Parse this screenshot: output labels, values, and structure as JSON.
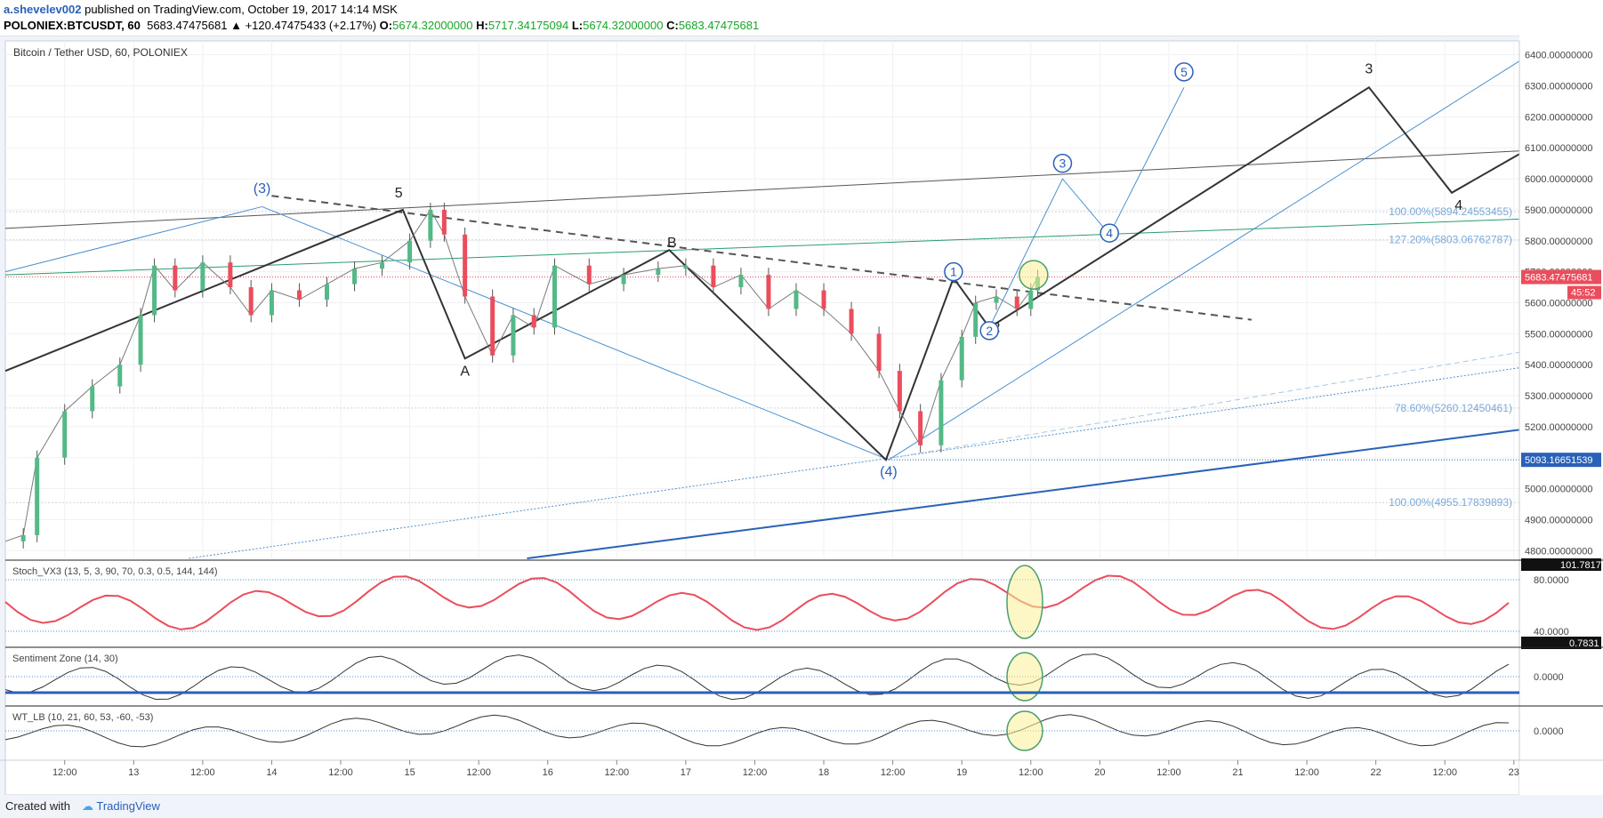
{
  "header": {
    "author": "a.shevelev002",
    "published": "published on TradingView.com, October 19, 2017 14:14 MSK",
    "symbol": "POLONIEX:BTCUSDT, 60",
    "last": "5683.47475681",
    "change": "▲ +120.47475433 (+2.17%)",
    "o_label": "O:",
    "o": "5674.32000000",
    "h_label": "H:",
    "h": "5717.34175094",
    "l_label": "L:",
    "l": "5674.32000000",
    "c_label": "C:",
    "c": "5683.47475681"
  },
  "footer": {
    "created": "Created with",
    "brand": "TradingView"
  },
  "chart_data": {
    "type": "line",
    "title": "Bitcoin / Tether USD, 60, POLONIEX",
    "y_ticks": [
      4800,
      4900,
      5000,
      5100,
      5200,
      5300,
      5400,
      5500,
      5600,
      5700,
      5800,
      5900,
      6000,
      6100,
      6200,
      6300,
      6400
    ],
    "y_tick_labels": [
      "4800.00000000",
      "4900.00000000",
      "5000.00000000",
      "5100.00000000",
      "5200.00000000",
      "5300.00000000",
      "5400.00000000",
      "5500.00000000",
      "5600.00000000",
      "5700.00000000",
      "5800.00000000",
      "5900.00000000",
      "6000.00000000",
      "6100.00000000",
      "6200.00000000",
      "6300.00000000",
      "6400.00000000"
    ],
    "ylim": [
      4775,
      6445
    ],
    "x_tick_labels": [
      "12:00",
      "13",
      "12:00",
      "14",
      "12:00",
      "15",
      "12:00",
      "16",
      "12:00",
      "17",
      "12:00",
      "18",
      "12:00",
      "19",
      "12:00",
      "20",
      "12:00",
      "21",
      "12:00",
      "22",
      "12:00",
      "23"
    ],
    "x_tick_values": [
      0.5,
      1,
      1.5,
      2,
      2.5,
      3,
      3.5,
      4,
      4.5,
      5,
      5.5,
      6,
      6.5,
      7,
      7.5,
      8,
      8.5,
      9,
      9.5,
      10,
      10.5,
      11
    ],
    "xlim": [
      0.07,
      11.04
    ],
    "price_label": "5683.47475681",
    "countdown": "45:52",
    "support_label": "5093.16651539",
    "fib_levels": [
      {
        "label": "100.00%(5894.24553455)",
        "value": 5894.25
      },
      {
        "label": "127.20%(5803.06762787)",
        "value": 5803.07
      },
      {
        "label": "78.60%(5260.12450461)",
        "value": 5260.12
      },
      {
        "label": "100.00%(4955.17839893)",
        "value": 4955.18
      }
    ],
    "price_path": [
      [
        0.07,
        4830
      ],
      [
        0.2,
        4850
      ],
      [
        0.3,
        5100
      ],
      [
        0.5,
        5250
      ],
      [
        0.7,
        5330
      ],
      [
        0.9,
        5400
      ],
      [
        1.05,
        5560
      ],
      [
        1.15,
        5720
      ],
      [
        1.3,
        5640
      ],
      [
        1.5,
        5730
      ],
      [
        1.7,
        5650
      ],
      [
        1.85,
        5560
      ],
      [
        2.0,
        5640
      ],
      [
        2.2,
        5610
      ],
      [
        2.4,
        5660
      ],
      [
        2.6,
        5710
      ],
      [
        2.8,
        5730
      ],
      [
        3.0,
        5800
      ],
      [
        3.15,
        5900
      ],
      [
        3.25,
        5820
      ],
      [
        3.4,
        5620
      ],
      [
        3.6,
        5430
      ],
      [
        3.75,
        5560
      ],
      [
        3.9,
        5520
      ],
      [
        4.05,
        5720
      ],
      [
        4.3,
        5660
      ],
      [
        4.55,
        5690
      ],
      [
        4.8,
        5710
      ],
      [
        5.0,
        5720
      ],
      [
        5.2,
        5650
      ],
      [
        5.4,
        5690
      ],
      [
        5.6,
        5580
      ],
      [
        5.8,
        5640
      ],
      [
        6.0,
        5580
      ],
      [
        6.2,
        5500
      ],
      [
        6.4,
        5380
      ],
      [
        6.55,
        5250
      ],
      [
        6.7,
        5140
      ],
      [
        6.85,
        5350
      ],
      [
        7.0,
        5490
      ],
      [
        7.1,
        5600
      ],
      [
        7.25,
        5620
      ],
      [
        7.4,
        5580
      ],
      [
        7.5,
        5640
      ],
      [
        7.55,
        5683
      ]
    ],
    "wave_labels": [
      {
        "text": "5",
        "x": 2.92,
        "y": 5940
      },
      {
        "text": "A",
        "x": 3.4,
        "y": 5365
      },
      {
        "text": "B",
        "x": 4.9,
        "y": 5780
      },
      {
        "text": "3",
        "x": 9.95,
        "y": 6340
      },
      {
        "text": "4",
        "x": 10.6,
        "y": 5900
      },
      {
        "text": "2",
        "x": 7.25,
        "y": 5505
      },
      {
        "text": "(3)",
        "x": 1.93,
        "y": 5955
      },
      {
        "text": "(4)",
        "x": 6.47,
        "y": 5040
      }
    ],
    "circled_labels": [
      {
        "text": "1",
        "x": 6.94,
        "y": 5700
      },
      {
        "text": "2",
        "x": 7.2,
        "y": 5510
      },
      {
        "text": "3",
        "x": 7.73,
        "y": 6050
      },
      {
        "text": "4",
        "x": 8.07,
        "y": 5825
      },
      {
        "text": "5",
        "x": 8.61,
        "y": 6345
      }
    ]
  },
  "indicators": [
    {
      "name": "Stoch_VX3 (13, 5, 3, 90, 70, 0.3, 0.5, 144, 144)",
      "badge_top": "101.7817",
      "badge_bottom": "0.7831",
      "ticks": [
        "80.0000",
        "40.0000"
      ]
    },
    {
      "name": "Sentiment Zone (14, 30)",
      "ticks": [
        "0.0000"
      ]
    },
    {
      "name": "WT_LB (10, 21, 60, 53, -60, -53)",
      "ticks": [
        "0.0000"
      ]
    }
  ],
  "colors": {
    "up": "#53b987",
    "down": "#eb4d5c",
    "wave": "#333333",
    "alt": "#4a90d0",
    "accent": "#2a61b8"
  }
}
